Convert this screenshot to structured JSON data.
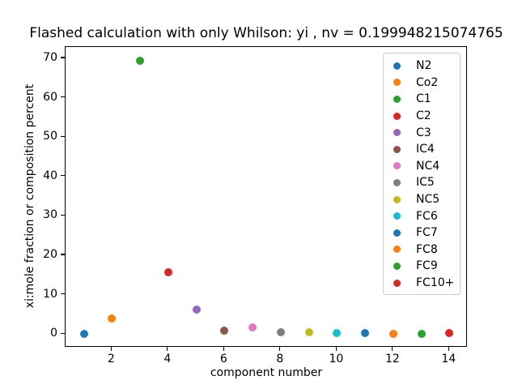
{
  "chart_data": {
    "type": "scatter",
    "title": "Flashed calculation with only Whilson: yi , nv = 0.199948215074765",
    "xlabel": "component number",
    "ylabel": "xi:mole fraction or composition percent",
    "xlim": [
      0.35,
      14.65
    ],
    "ylim": [
      -3.47,
      72.87
    ],
    "x_ticks": [
      2,
      4,
      6,
      8,
      10,
      12,
      14
    ],
    "y_ticks": [
      0,
      10,
      20,
      30,
      40,
      50,
      60,
      70
    ],
    "grid": false,
    "legend_position": "upper right",
    "series": [
      {
        "name": "N2",
        "x": 1,
        "y": 0.0,
        "color": "#1f77b4"
      },
      {
        "name": "Co2",
        "x": 2,
        "y": 3.9,
        "color": "#ff7f0e"
      },
      {
        "name": "C1",
        "x": 3,
        "y": 69.4,
        "color": "#2ca02c"
      },
      {
        "name": "C2",
        "x": 4,
        "y": 15.7,
        "color": "#d62728"
      },
      {
        "name": "C3",
        "x": 5,
        "y": 6.2,
        "color": "#9467bd"
      },
      {
        "name": "IC4",
        "x": 6,
        "y": 0.8,
        "color": "#8c564b"
      },
      {
        "name": "NC4",
        "x": 7,
        "y": 1.6,
        "color": "#e377c2"
      },
      {
        "name": "IC5",
        "x": 8,
        "y": 0.5,
        "color": "#7f7f7f"
      },
      {
        "name": "NC5",
        "x": 9,
        "y": 0.4,
        "color": "#bcbd22"
      },
      {
        "name": "FC6",
        "x": 10,
        "y": 0.25,
        "color": "#17becf"
      },
      {
        "name": "FC7",
        "x": 11,
        "y": 0.2,
        "color": "#1f77b4"
      },
      {
        "name": "FC8",
        "x": 12,
        "y": 0.1,
        "color": "#ff7f0e"
      },
      {
        "name": "FC9",
        "x": 13,
        "y": 0.1,
        "color": "#2ca02c"
      },
      {
        "name": "FC10+",
        "x": 14,
        "y": 0.15,
        "color": "#d62728"
      }
    ]
  }
}
